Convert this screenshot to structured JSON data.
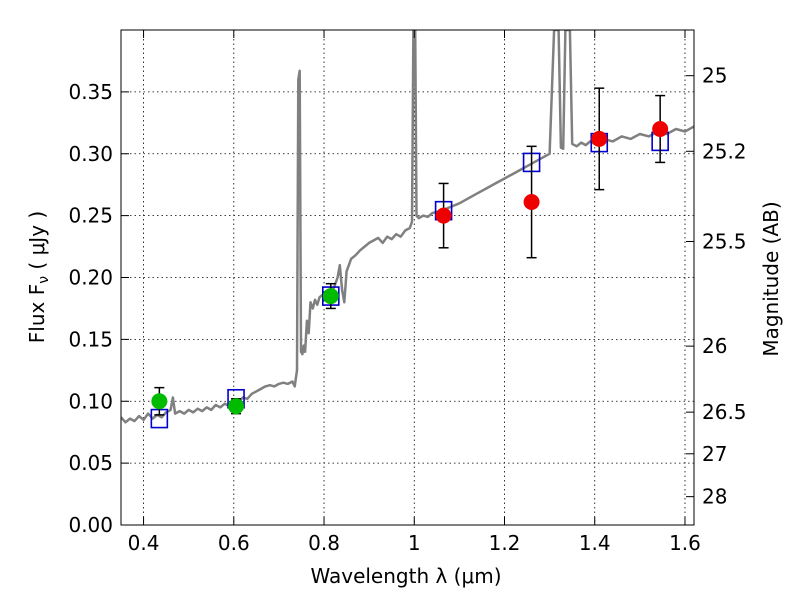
{
  "chart_data": {
    "type": "scatter",
    "title": "",
    "xlabel": "Wavelength  λ (μm)",
    "ylabel": "Flux  F",
    "ylabel_sub": "ν",
    "ylabel_unit": " ( μJy )",
    "y2label": "Magnitude (AB)",
    "xlim": [
      0.35,
      1.62
    ],
    "ylim": [
      0.0,
      0.4
    ],
    "grid": true,
    "x_ticks": [
      {
        "value": 0.4,
        "label": "0.4"
      },
      {
        "value": 0.6,
        "label": "0.6"
      },
      {
        "value": 0.8,
        "label": "0.8"
      },
      {
        "value": 1.0,
        "label": "1"
      },
      {
        "value": 1.2,
        "label": "1.2"
      },
      {
        "value": 1.4,
        "label": "1.4"
      },
      {
        "value": 1.6,
        "label": "1.6"
      }
    ],
    "y_ticks": [
      {
        "value": 0.0,
        "label": "0.00"
      },
      {
        "value": 0.05,
        "label": "0.05"
      },
      {
        "value": 0.1,
        "label": "0.10"
      },
      {
        "value": 0.15,
        "label": "0.15"
      },
      {
        "value": 0.2,
        "label": "0.20"
      },
      {
        "value": 0.25,
        "label": "0.25"
      },
      {
        "value": 0.3,
        "label": "0.30"
      },
      {
        "value": 0.35,
        "label": "0.35"
      }
    ],
    "y2_ticks": [
      {
        "value": 25,
        "label": "25"
      },
      {
        "value": 25.2,
        "label": "25.2"
      },
      {
        "value": 25.5,
        "label": "25.5"
      },
      {
        "value": 26,
        "label": "26"
      },
      {
        "value": 26.5,
        "label": "26.5"
      },
      {
        "value": 27,
        "label": "27"
      },
      {
        "value": 28,
        "label": "28"
      }
    ],
    "colors": {
      "spectrum": "#808080",
      "model": "#0000cc",
      "optical": "#00bb00",
      "nir": "#ee0000",
      "errorbar": "#000000"
    },
    "series": [
      {
        "name": "spectrum",
        "style": "line",
        "points": [
          [
            0.35,
            0.087
          ],
          [
            0.36,
            0.083
          ],
          [
            0.37,
            0.086
          ],
          [
            0.38,
            0.084
          ],
          [
            0.39,
            0.088
          ],
          [
            0.4,
            0.085
          ],
          [
            0.41,
            0.09
          ],
          [
            0.42,
            0.086
          ],
          [
            0.43,
            0.089
          ],
          [
            0.44,
            0.087
          ],
          [
            0.45,
            0.091
          ],
          [
            0.46,
            0.093
          ],
          [
            0.465,
            0.103
          ],
          [
            0.47,
            0.09
          ],
          [
            0.48,
            0.092
          ],
          [
            0.49,
            0.09
          ],
          [
            0.5,
            0.093
          ],
          [
            0.51,
            0.091
          ],
          [
            0.52,
            0.094
          ],
          [
            0.53,
            0.092
          ],
          [
            0.54,
            0.095
          ],
          [
            0.55,
            0.093
          ],
          [
            0.56,
            0.097
          ],
          [
            0.57,
            0.095
          ],
          [
            0.58,
            0.098
          ],
          [
            0.59,
            0.096
          ],
          [
            0.6,
            0.1
          ],
          [
            0.61,
            0.099
          ],
          [
            0.62,
            0.103
          ],
          [
            0.63,
            0.102
          ],
          [
            0.64,
            0.106
          ],
          [
            0.65,
            0.108
          ],
          [
            0.66,
            0.11
          ],
          [
            0.67,
            0.112
          ],
          [
            0.68,
            0.113
          ],
          [
            0.69,
            0.112
          ],
          [
            0.7,
            0.114
          ],
          [
            0.71,
            0.115
          ],
          [
            0.72,
            0.114
          ],
          [
            0.73,
            0.116
          ],
          [
            0.735,
            0.112
          ],
          [
            0.74,
            0.125
          ],
          [
            0.743,
            0.36
          ],
          [
            0.746,
            0.367
          ],
          [
            0.749,
            0.14
          ],
          [
            0.752,
            0.138
          ],
          [
            0.755,
            0.145
          ],
          [
            0.758,
            0.14
          ],
          [
            0.762,
            0.165
          ],
          [
            0.766,
            0.155
          ],
          [
            0.77,
            0.18
          ],
          [
            0.775,
            0.175
          ],
          [
            0.78,
            0.182
          ],
          [
            0.785,
            0.178
          ],
          [
            0.79,
            0.184
          ],
          [
            0.8,
            0.187
          ],
          [
            0.81,
            0.186
          ],
          [
            0.82,
            0.19
          ],
          [
            0.83,
            0.2
          ],
          [
            0.835,
            0.21
          ],
          [
            0.84,
            0.19
          ],
          [
            0.845,
            0.18
          ],
          [
            0.85,
            0.205
          ],
          [
            0.86,
            0.215
          ],
          [
            0.87,
            0.218
          ],
          [
            0.88,
            0.222
          ],
          [
            0.89,
            0.225
          ],
          [
            0.9,
            0.228
          ],
          [
            0.91,
            0.23
          ],
          [
            0.92,
            0.232
          ],
          [
            0.93,
            0.228
          ],
          [
            0.94,
            0.233
          ],
          [
            0.95,
            0.231
          ],
          [
            0.96,
            0.235
          ],
          [
            0.97,
            0.233
          ],
          [
            0.98,
            0.238
          ],
          [
            0.99,
            0.24
          ],
          [
            0.995,
            0.245
          ],
          [
            0.998,
            0.4
          ],
          [
            1.002,
            0.4
          ],
          [
            1.005,
            0.25
          ],
          [
            1.01,
            0.248
          ],
          [
            1.02,
            0.25
          ],
          [
            1.03,
            0.249
          ],
          [
            1.04,
            0.252
          ],
          [
            1.06,
            0.254
          ],
          [
            1.08,
            0.257
          ],
          [
            1.1,
            0.26
          ],
          [
            1.12,
            0.264
          ],
          [
            1.14,
            0.268
          ],
          [
            1.16,
            0.272
          ],
          [
            1.18,
            0.276
          ],
          [
            1.2,
            0.28
          ],
          [
            1.22,
            0.284
          ],
          [
            1.24,
            0.288
          ],
          [
            1.26,
            0.292
          ],
          [
            1.28,
            0.296
          ],
          [
            1.3,
            0.3
          ],
          [
            1.31,
            0.4
          ],
          [
            1.32,
            0.4
          ],
          [
            1.325,
            0.305
          ],
          [
            1.33,
            0.304
          ],
          [
            1.335,
            0.4
          ],
          [
            1.345,
            0.4
          ],
          [
            1.35,
            0.308
          ],
          [
            1.36,
            0.306
          ],
          [
            1.37,
            0.309
          ],
          [
            1.38,
            0.307
          ],
          [
            1.39,
            0.31
          ],
          [
            1.4,
            0.308
          ],
          [
            1.42,
            0.312
          ],
          [
            1.44,
            0.31
          ],
          [
            1.46,
            0.314
          ],
          [
            1.48,
            0.312
          ],
          [
            1.5,
            0.316
          ],
          [
            1.52,
            0.314
          ],
          [
            1.54,
            0.318
          ],
          [
            1.56,
            0.316
          ],
          [
            1.58,
            0.32
          ],
          [
            1.6,
            0.318
          ],
          [
            1.62,
            0.322
          ]
        ]
      },
      {
        "name": "model",
        "style": "open-square",
        "points": [
          [
            0.435,
            0.086
          ],
          [
            0.605,
            0.102
          ],
          [
            0.815,
            0.185
          ],
          [
            1.065,
            0.254
          ],
          [
            1.26,
            0.293
          ],
          [
            1.41,
            0.309
          ],
          [
            1.545,
            0.31
          ]
        ]
      },
      {
        "name": "optical",
        "style": "filled-circle",
        "points": [
          {
            "x": 0.435,
            "y": 0.1,
            "err": 0.011
          },
          {
            "x": 0.605,
            "y": 0.096,
            "err": 0.006
          },
          {
            "x": 0.815,
            "y": 0.185,
            "err": 0.01
          }
        ]
      },
      {
        "name": "nir",
        "style": "filled-circle",
        "points": [
          {
            "x": 1.065,
            "y": 0.25,
            "err": 0.026
          },
          {
            "x": 1.26,
            "y": 0.261,
            "err": 0.045
          },
          {
            "x": 1.41,
            "y": 0.312,
            "err": 0.041
          },
          {
            "x": 1.545,
            "y": 0.32,
            "err": 0.027
          }
        ]
      }
    ]
  }
}
